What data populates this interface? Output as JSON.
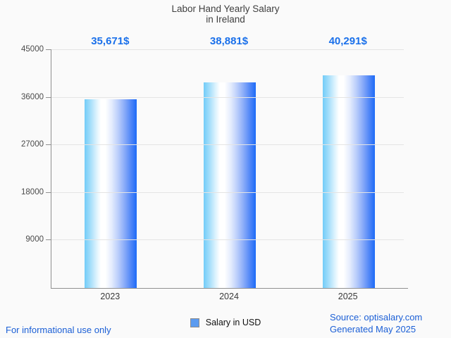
{
  "title": {
    "line1": "Labor Hand Yearly Salary",
    "line2": "in Ireland"
  },
  "chart_data": {
    "type": "bar",
    "title": "Labor Hand Yearly Salary in Ireland",
    "categories": [
      "2023",
      "2024",
      "2025"
    ],
    "values": [
      35671,
      38881,
      40291
    ],
    "value_labels": [
      "35,671$",
      "38,881$",
      "40,291$"
    ],
    "series": [
      {
        "name": "Salary in USD",
        "values": [
          35671,
          38881,
          40291
        ]
      }
    ],
    "xlabel": "",
    "ylabel": "",
    "ylim": [
      0,
      45000
    ],
    "yticks": [
      45000,
      36000,
      27000,
      18000,
      9000
    ],
    "grid": true,
    "legend_position": "bottom",
    "bar_gradient": [
      "#72ccf8",
      "#ffffff",
      "#1d6bf7"
    ]
  },
  "legend": {
    "label": "Salary in USD",
    "marker_color": "#5b9bf0"
  },
  "footer": {
    "disclaimer": "For informational use only",
    "source": "Source: optisalary.com",
    "generated": "Generated May 2025"
  },
  "colors": {
    "page_background": "#fafafa",
    "title_text": "#3f3f3f",
    "value_label_text": "#1a70ea",
    "axis": "#909090",
    "gridline": "#e4e4e4",
    "tick_label_text": "#4a4a4a",
    "footer_text": "#1b5fd6"
  }
}
